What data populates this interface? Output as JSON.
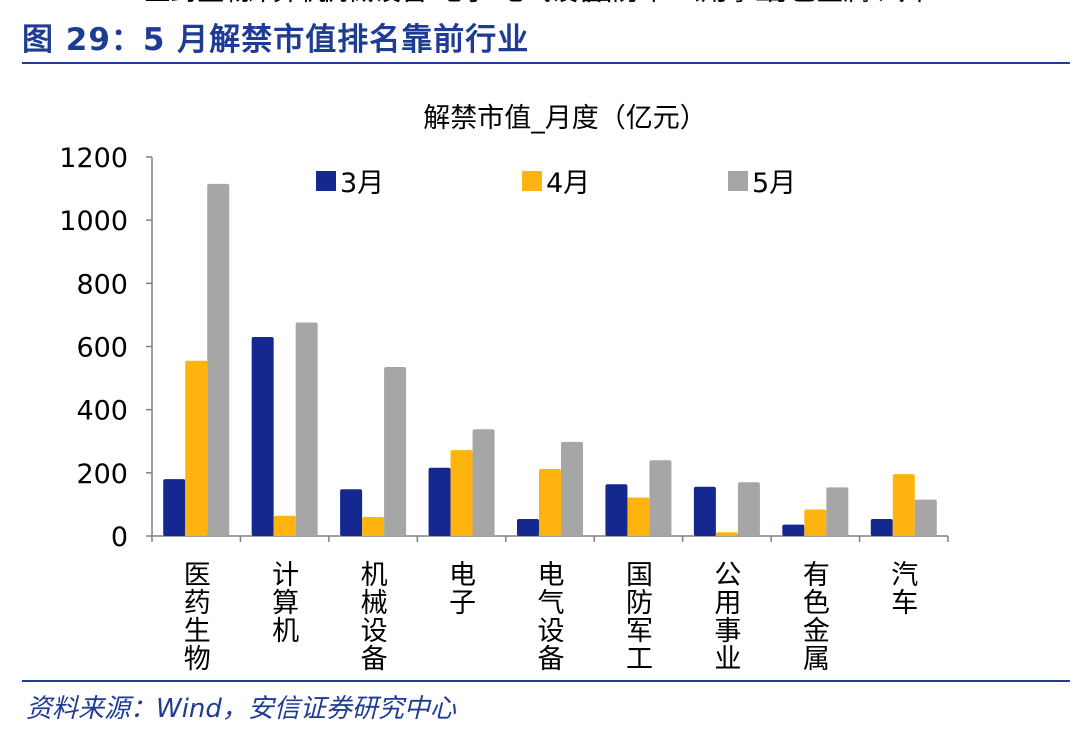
{
  "figure": {
    "title": "图 29：5 月解禁市值排名靠前行业",
    "source": "资料来源：Wind，安信证券研究中心"
  },
  "chart_data": {
    "type": "bar",
    "title": "解禁市值_月度（亿元）",
    "xlabel": "",
    "ylabel": "",
    "ylim": [
      0,
      1200
    ],
    "yticks": [
      0,
      200,
      400,
      600,
      800,
      1000,
      1200
    ],
    "grid": false,
    "legend_position": "top",
    "categories": [
      "医药生物",
      "计算机",
      "机械设备",
      "电子",
      "电气设备",
      "国防军工",
      "公用事业",
      "有色金属",
      "汽车"
    ],
    "series": [
      {
        "name": "3月",
        "color": "#14288f",
        "values": [
          180,
          630,
          148,
          216,
          54,
          164,
          156,
          36,
          54
        ]
      },
      {
        "name": "4月",
        "color": "#ffb30f",
        "values": [
          555,
          64,
          60,
          272,
          212,
          122,
          12,
          84,
          196
        ]
      },
      {
        "name": "5月",
        "color": "#a6a6a6",
        "values": [
          1115,
          676,
          535,
          338,
          298,
          240,
          170,
          154,
          115
        ]
      }
    ]
  }
}
